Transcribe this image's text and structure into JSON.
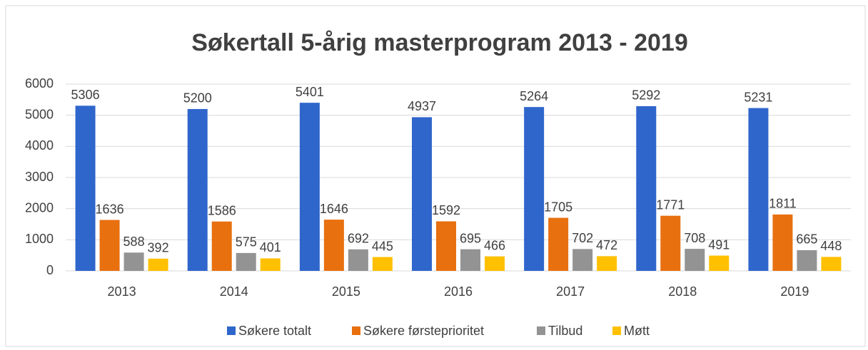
{
  "chart_data": {
    "type": "bar",
    "title": "Søkertall 5-årig masterprogram 2013 - 2019",
    "categories": [
      "2013",
      "2014",
      "2015",
      "2016",
      "2017",
      "2018",
      "2019"
    ],
    "series": [
      {
        "name": "Søkere totalt",
        "color": "#2f66cc",
        "values": [
          5306,
          5200,
          5401,
          4937,
          5264,
          5292,
          5231
        ]
      },
      {
        "name": "Søkere førsteprioritet",
        "color": "#e8700f",
        "values": [
          1636,
          1586,
          1646,
          1592,
          1705,
          1771,
          1811
        ]
      },
      {
        "name": "Tilbud",
        "color": "#939393",
        "values": [
          588,
          575,
          692,
          695,
          702,
          708,
          665
        ]
      },
      {
        "name": "Møtt",
        "color": "#ffc000",
        "values": [
          392,
          401,
          445,
          466,
          472,
          491,
          448
        ]
      }
    ],
    "ylim": [
      0,
      6000
    ],
    "yticks": [
      0,
      1000,
      2000,
      3000,
      4000,
      5000,
      6000
    ],
    "grid": true,
    "legend": "bottom"
  }
}
